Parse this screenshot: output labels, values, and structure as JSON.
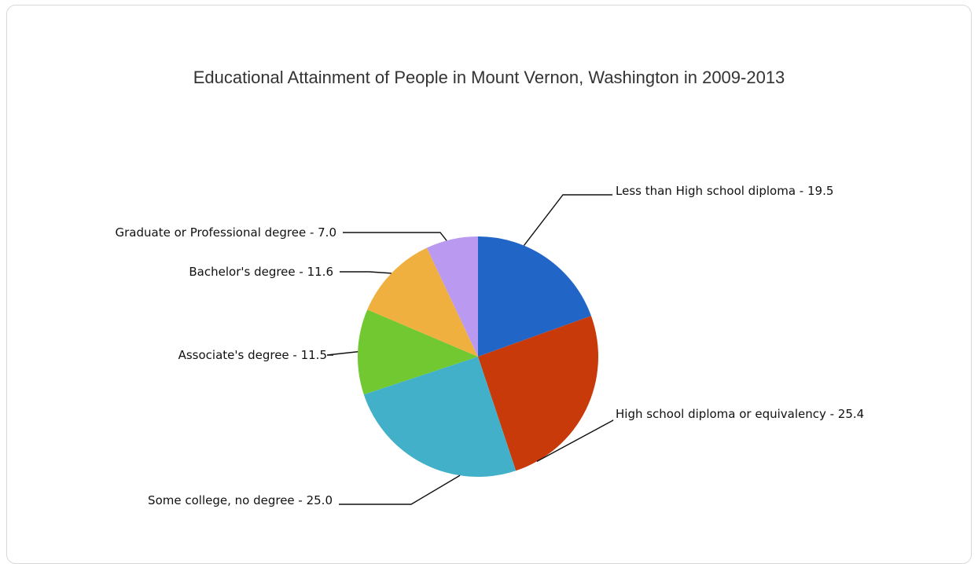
{
  "chart_data": {
    "type": "pie",
    "title": "Educational Attainment of People in Mount Vernon, Washington in 2009-2013",
    "categories": [
      "Less than High school diploma",
      "High school diploma or equivalency",
      "Some college, no degree",
      "Associate's degree",
      "Bachelor's degree",
      "Graduate or Professional degree"
    ],
    "values": [
      19.5,
      25.4,
      25.0,
      11.5,
      11.6,
      7.0
    ],
    "labels": [
      "Less than High school diploma - 19.5",
      "High school diploma or equivalency - 25.4",
      "Some college, no degree - 25.0",
      "Associate's degree - 11.5",
      "Bachelor's degree - 11.6",
      "Graduate or Professional degree - 7.0"
    ],
    "colors": [
      "#2166c7",
      "#c83a0a",
      "#42b0c8",
      "#72c830",
      "#f0b040",
      "#b99af0"
    ],
    "start_angle": "12 o'clock",
    "direction": "clockwise",
    "legend": "none"
  }
}
